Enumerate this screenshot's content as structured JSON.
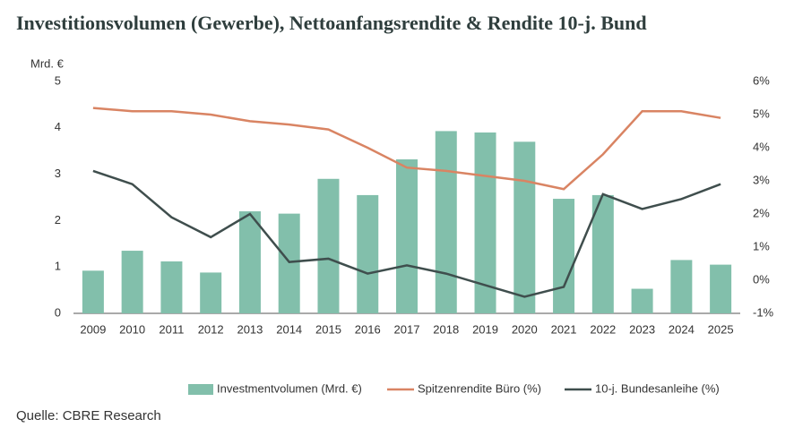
{
  "chart_data": {
    "type": "bar-line",
    "title": "Investitionsvolumen (Gewerbe), Nettoanfangsrendite & Rendite 10-j. Bund",
    "y_label": "Mrd. €",
    "source": "Quelle: CBRE Research",
    "categories": [
      "2009",
      "2010",
      "2011",
      "2012",
      "2013",
      "2014",
      "2015",
      "2016",
      "2017",
      "2018",
      "2019",
      "2020",
      "2021",
      "2022",
      "2023",
      "2024",
      "2025"
    ],
    "series": [
      {
        "name": "Investmentvolumen (Mrd. €)",
        "type": "bar",
        "axis": "y",
        "color": "#82bfab",
        "values": [
          0.92,
          1.35,
          1.12,
          0.88,
          2.2,
          2.15,
          2.9,
          2.55,
          3.32,
          3.93,
          3.9,
          3.7,
          2.47,
          2.55,
          0.53,
          1.15,
          1.05
        ]
      },
      {
        "name": "Spitzenrendite Büro (%)",
        "type": "line",
        "axis": "y2",
        "color": "#d98463",
        "values": [
          5.2,
          5.1,
          5.1,
          5.0,
          4.8,
          4.7,
          4.55,
          4.0,
          3.4,
          3.3,
          3.15,
          3.0,
          2.75,
          3.8,
          5.1,
          5.1,
          4.9
        ]
      },
      {
        "name": "10-j. Bundesanleihe (%)",
        "type": "line",
        "axis": "y2",
        "color": "#3f4e4d",
        "values": [
          3.3,
          2.9,
          1.9,
          1.3,
          2.0,
          0.55,
          0.65,
          0.2,
          0.45,
          0.2,
          -0.15,
          -0.5,
          -0.2,
          2.6,
          2.15,
          2.45,
          2.9
        ]
      }
    ],
    "ylim": [
      0,
      5
    ],
    "yticks": [
      0,
      1,
      2,
      3,
      4,
      5
    ],
    "y2lim": [
      -1,
      6
    ],
    "y2ticks": [
      {
        "value": -1,
        "label": "-1%"
      },
      {
        "value": 0,
        "label": "0%"
      },
      {
        "value": 1,
        "label": "1%"
      },
      {
        "value": 2,
        "label": "2%"
      },
      {
        "value": 3,
        "label": "3%"
      },
      {
        "value": 4,
        "label": "4%"
      },
      {
        "value": 5,
        "label": "5%"
      },
      {
        "value": 6,
        "label": "6%"
      }
    ]
  }
}
